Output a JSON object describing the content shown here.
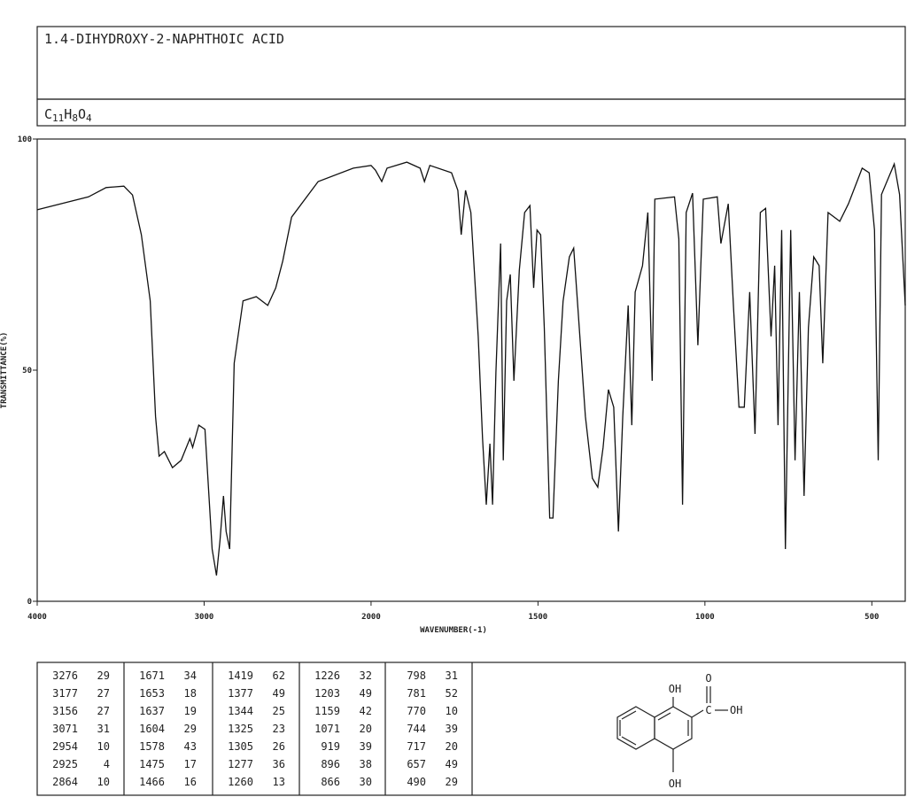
{
  "compound": {
    "name": "1.4-DIHYDROXY-2-NAPHTHOIC ACID",
    "formula": [
      "C",
      "11",
      "H",
      "8",
      "O",
      "4"
    ]
  },
  "chart_data": {
    "type": "line",
    "xlabel": "WAVENUMBER(-1)",
    "ylabel": "TRANSMITTANCE(%)",
    "xlim": [
      4000,
      400
    ],
    "x_scale_break": 2000,
    "xticks": [
      4000,
      3000,
      2000,
      1500,
      1000,
      500
    ],
    "ylim": [
      0,
      100
    ],
    "yticks": [
      0,
      50,
      100
    ],
    "color": "#111111",
    "x": [
      4000,
      3693,
      3587,
      3481,
      3429,
      3376,
      3323,
      3291,
      3270,
      3238,
      3190,
      3138,
      3085,
      3069,
      3032,
      2995,
      2952,
      2926,
      2905,
      2884,
      2868,
      2847,
      2820,
      2767,
      2688,
      2619,
      2571,
      2529,
      2476,
      2317,
      2106,
      2000,
      1987,
      1968,
      1952,
      1893,
      1853,
      1840,
      1824,
      1759,
      1740,
      1730,
      1717,
      1701,
      1679,
      1666,
      1655,
      1644,
      1636,
      1626,
      1612,
      1604,
      1594,
      1583,
      1572,
      1556,
      1540,
      1524,
      1513,
      1503,
      1492,
      1481,
      1465,
      1455,
      1439,
      1425,
      1406,
      1393,
      1380,
      1358,
      1337,
      1321,
      1305,
      1289,
      1273,
      1259,
      1246,
      1230,
      1219,
      1209,
      1187,
      1171,
      1158,
      1150,
      1091,
      1078,
      1067,
      1056,
      1037,
      1021,
      1005,
      963,
      952,
      930,
      914,
      898,
      882,
      866,
      850,
      834,
      818,
      802,
      791,
      781,
      770,
      759,
      743,
      730,
      717,
      703,
      690,
      674,
      658,
      647,
      631,
      596,
      570,
      529,
      508,
      492,
      481,
      471,
      449,
      433,
      417,
      406,
      400
    ],
    "values": [
      84.7,
      87.5,
      89.5,
      89.8,
      87.9,
      79.3,
      65,
      40,
      31.4,
      32.4,
      28.9,
      30.5,
      35.2,
      33.3,
      38.1,
      37.2,
      11.3,
      5.6,
      13.2,
      22.8,
      15.1,
      11.3,
      51.5,
      65,
      65.9,
      64,
      67.8,
      73.6,
      83.1,
      90.8,
      93.7,
      94.3,
      93.3,
      90.8,
      93.7,
      95,
      93.7,
      90.8,
      94.3,
      92.7,
      88.9,
      79.3,
      88.9,
      84.1,
      57.3,
      35.2,
      20.9,
      34.1,
      20.9,
      49.6,
      77.4,
      30.5,
      65,
      70.7,
      47.7,
      71.6,
      84.1,
      85.6,
      67.8,
      80.3,
      79.3,
      59.2,
      18,
      18,
      47.7,
      64.9,
      74.5,
      76.4,
      63,
      40,
      26.6,
      24.7,
      33.3,
      45.8,
      42,
      15.1,
      40,
      64,
      38.1,
      66.9,
      72.6,
      84.1,
      47.7,
      87,
      87.5,
      78.4,
      20.9,
      84.1,
      88.3,
      55.4,
      87,
      87.5,
      77.4,
      86,
      63,
      42,
      42,
      66.9,
      36.2,
      84.1,
      85,
      57.3,
      72.6,
      38.1,
      80.3,
      11.3,
      80.3,
      30.5,
      66.9,
      22.8,
      59.2,
      74.5,
      72.6,
      51.5,
      84.1,
      82.2,
      86,
      93.7,
      92.7,
      80.3,
      30.5,
      88,
      91.8,
      94.6,
      88,
      72.6,
      64
    ]
  },
  "peak_table": [
    [
      [
        3276,
        29
      ],
      [
        3177,
        27
      ],
      [
        3156,
        27
      ],
      [
        3071,
        31
      ],
      [
        2954,
        10
      ],
      [
        2925,
        4
      ],
      [
        2864,
        10
      ]
    ],
    [
      [
        1671,
        34
      ],
      [
        1653,
        18
      ],
      [
        1637,
        19
      ],
      [
        1604,
        29
      ],
      [
        1578,
        43
      ],
      [
        1475,
        17
      ],
      [
        1466,
        16
      ]
    ],
    [
      [
        1419,
        62
      ],
      [
        1377,
        49
      ],
      [
        1344,
        25
      ],
      [
        1325,
        23
      ],
      [
        1305,
        26
      ],
      [
        1277,
        36
      ],
      [
        1260,
        13
      ]
    ],
    [
      [
        1226,
        32
      ],
      [
        1203,
        49
      ],
      [
        1159,
        42
      ],
      [
        1071,
        20
      ],
      [
        919,
        39
      ],
      [
        896,
        38
      ],
      [
        866,
        30
      ]
    ],
    [
      [
        798,
        31
      ],
      [
        781,
        52
      ],
      [
        770,
        10
      ],
      [
        744,
        39
      ],
      [
        717,
        20
      ],
      [
        657,
        49
      ],
      [
        490,
        29
      ]
    ]
  ],
  "structure": {
    "labels": [
      "OH",
      "O",
      "C",
      "OH",
      "OH"
    ]
  }
}
